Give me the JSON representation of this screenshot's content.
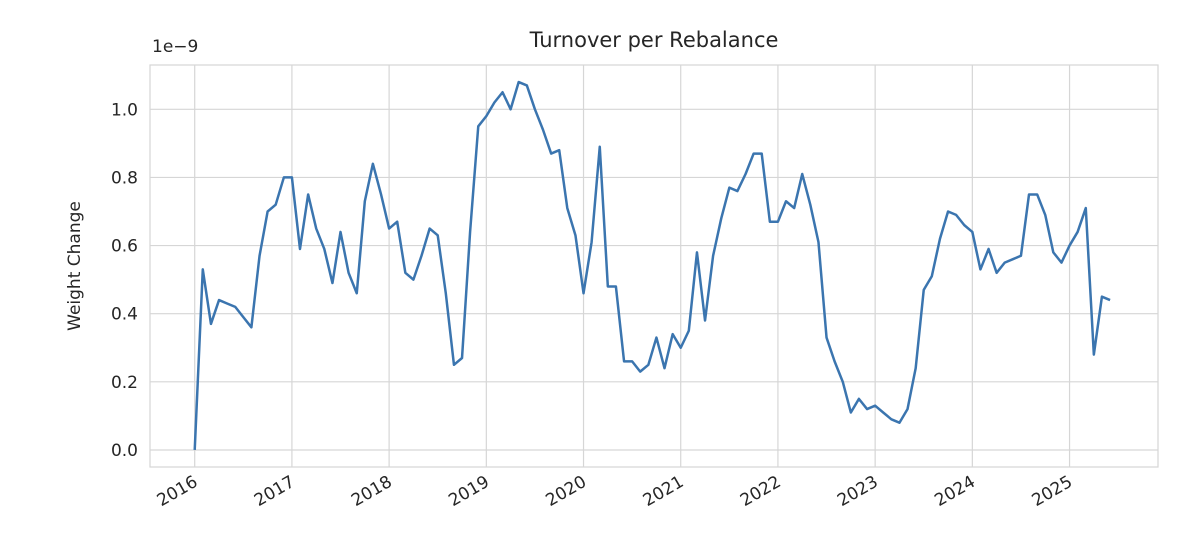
{
  "chart_data": {
    "type": "line",
    "title": "Turnover per Rebalance",
    "y_label": "Weight Change",
    "offset_label": "1e−9",
    "x": [
      2016.0,
      2016.083,
      2016.167,
      2016.25,
      2016.333,
      2016.417,
      2016.5,
      2016.583,
      2016.667,
      2016.75,
      2016.833,
      2016.917,
      2017.0,
      2017.083,
      2017.167,
      2017.25,
      2017.333,
      2017.417,
      2017.5,
      2017.583,
      2017.667,
      2017.75,
      2017.833,
      2017.917,
      2018.0,
      2018.083,
      2018.167,
      2018.25,
      2018.333,
      2018.417,
      2018.5,
      2018.583,
      2018.667,
      2018.75,
      2018.833,
      2018.917,
      2019.0,
      2019.083,
      2019.167,
      2019.25,
      2019.333,
      2019.417,
      2019.5,
      2019.583,
      2019.667,
      2019.75,
      2019.833,
      2019.917,
      2020.0,
      2020.083,
      2020.167,
      2020.25,
      2020.333,
      2020.417,
      2020.5,
      2020.583,
      2020.667,
      2020.75,
      2020.833,
      2020.917,
      2021.0,
      2021.083,
      2021.167,
      2021.25,
      2021.333,
      2021.417,
      2021.5,
      2021.583,
      2021.667,
      2021.75,
      2021.833,
      2021.917,
      2022.0,
      2022.083,
      2022.167,
      2022.25,
      2022.333,
      2022.417,
      2022.5,
      2022.583,
      2022.667,
      2022.75,
      2022.833,
      2022.917,
      2023.0,
      2023.083,
      2023.167,
      2023.25,
      2023.333,
      2023.417,
      2023.5,
      2023.583,
      2023.667,
      2023.75,
      2023.833,
      2023.917,
      2024.0,
      2024.083,
      2024.167,
      2024.25,
      2024.333,
      2024.417,
      2024.5,
      2024.583,
      2024.667,
      2024.75,
      2024.833,
      2024.917,
      2025.0,
      2025.083,
      2025.167,
      2025.25,
      2025.333,
      2025.417
    ],
    "series": [
      {
        "color": "#3b75af",
        "values": [
          0.0,
          0.53,
          0.37,
          0.44,
          0.43,
          0.42,
          0.39,
          0.36,
          0.57,
          0.7,
          0.72,
          0.8,
          0.8,
          0.59,
          0.75,
          0.65,
          0.59,
          0.49,
          0.64,
          0.52,
          0.46,
          0.73,
          0.84,
          0.75,
          0.65,
          0.67,
          0.52,
          0.5,
          0.57,
          0.65,
          0.63,
          0.46,
          0.25,
          0.27,
          0.64,
          0.95,
          0.98,
          1.02,
          1.05,
          1.0,
          1.08,
          1.07,
          1.0,
          0.94,
          0.87,
          0.88,
          0.71,
          0.63,
          0.46,
          0.61,
          0.89,
          0.48,
          0.48,
          0.26,
          0.26,
          0.23,
          0.25,
          0.33,
          0.24,
          0.34,
          0.3,
          0.35,
          0.58,
          0.38,
          0.57,
          0.68,
          0.77,
          0.76,
          0.81,
          0.87,
          0.87,
          0.67,
          0.67,
          0.73,
          0.71,
          0.81,
          0.72,
          0.61,
          0.33,
          0.26,
          0.2,
          0.11,
          0.15,
          0.12,
          0.13,
          0.11,
          0.09,
          0.08,
          0.12,
          0.24,
          0.47,
          0.51,
          0.62,
          0.7,
          0.69,
          0.66,
          0.64,
          0.53,
          0.59,
          0.52,
          0.55,
          0.56,
          0.57,
          0.75,
          0.75,
          0.69,
          0.58,
          0.55,
          0.6,
          0.64,
          0.71,
          0.28,
          0.45,
          0.44
        ]
      }
    ],
    "xlim": [
      2015.54,
      2025.91
    ],
    "xticks": [
      2016,
      2017,
      2018,
      2019,
      2020,
      2021,
      2022,
      2023,
      2024,
      2025
    ],
    "ylim": [
      -0.05,
      1.13
    ],
    "yticks": [
      {
        "value": 0,
        "label": "0.0"
      },
      0.2,
      0.4,
      0.6,
      0.8,
      {
        "value": 1,
        "label": "1.0"
      }
    ],
    "grid": true
  }
}
